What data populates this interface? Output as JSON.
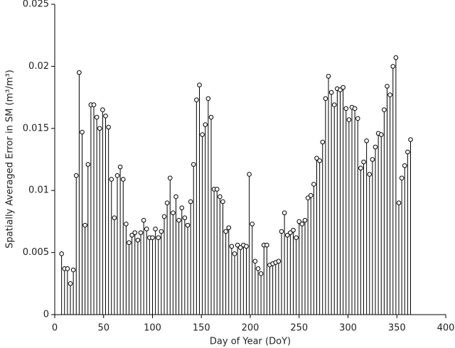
{
  "chart_data": {
    "type": "stem",
    "xlabel": "Day of Year (DoY)",
    "ylabel": "Spatially Averaged Error in SM (m³/m³)",
    "xlim": [
      0,
      400
    ],
    "xticks": [
      0,
      50,
      100,
      150,
      200,
      250,
      300,
      350,
      400
    ],
    "ylim": [
      0,
      0.025
    ],
    "yticks": [
      0,
      0.005,
      0.01,
      0.015,
      0.02,
      0.025
    ],
    "color": "#000000",
    "x": [
      7,
      10,
      13,
      16,
      19,
      22,
      25,
      28,
      31,
      34,
      37,
      40,
      43,
      46,
      49,
      52,
      55,
      58,
      61,
      64,
      67,
      70,
      73,
      76,
      79,
      82,
      85,
      88,
      91,
      94,
      97,
      100,
      103,
      106,
      109,
      112,
      115,
      118,
      121,
      124,
      127,
      130,
      133,
      136,
      139,
      142,
      145,
      148,
      151,
      154,
      157,
      160,
      163,
      166,
      169,
      172,
      175,
      178,
      181,
      184,
      187,
      190,
      193,
      196,
      199,
      202,
      205,
      208,
      211,
      214,
      217,
      220,
      223,
      226,
      229,
      232,
      235,
      238,
      241,
      244,
      247,
      250,
      253,
      256,
      259,
      262,
      265,
      268,
      271,
      274,
      277,
      280,
      283,
      286,
      289,
      292,
      295,
      298,
      301,
      304,
      307,
      310,
      313,
      316,
      319,
      322,
      325,
      328,
      331,
      334,
      337,
      340,
      343,
      346,
      349,
      352,
      355,
      358,
      361,
      364
    ],
    "values": [
      0.0049,
      0.0037,
      0.0037,
      0.0025,
      0.0036,
      0.0112,
      0.0195,
      0.0147,
      0.0072,
      0.0121,
      0.0169,
      0.0169,
      0.0159,
      0.015,
      0.0165,
      0.016,
      0.0151,
      0.0109,
      0.0078,
      0.0112,
      0.0119,
      0.0109,
      0.0073,
      0.0058,
      0.0064,
      0.0066,
      0.006,
      0.0066,
      0.0076,
      0.0069,
      0.0062,
      0.0062,
      0.0069,
      0.0062,
      0.0067,
      0.0079,
      0.009,
      0.011,
      0.0082,
      0.0095,
      0.0076,
      0.0086,
      0.0078,
      0.0072,
      0.0091,
      0.0121,
      0.0173,
      0.0185,
      0.0145,
      0.0153,
      0.0174,
      0.0159,
      0.0101,
      0.0101,
      0.0095,
      0.0091,
      0.0067,
      0.007,
      0.0055,
      0.0049,
      0.0056,
      0.0054,
      0.0056,
      0.0055,
      0.0113,
      0.0073,
      0.0043,
      0.0037,
      0.0033,
      0.0056,
      0.0056,
      0.004,
      0.0041,
      0.0042,
      0.0043,
      0.0067,
      0.0082,
      0.0064,
      0.0066,
      0.0068,
      0.0062,
      0.0075,
      0.0073,
      0.0076,
      0.0094,
      0.0096,
      0.0105,
      0.0126,
      0.0124,
      0.0139,
      0.0174,
      0.0192,
      0.0179,
      0.0169,
      0.0182,
      0.0181,
      0.0183,
      0.0166,
      0.0157,
      0.0167,
      0.0166,
      0.0158,
      0.0118,
      0.0123,
      0.014,
      0.0113,
      0.0125,
      0.0135,
      0.0146,
      0.0145,
      0.0165,
      0.0184,
      0.0177,
      0.02,
      0.0207,
      0.009,
      0.011,
      0.012,
      0.0131,
      0.0141
    ]
  }
}
